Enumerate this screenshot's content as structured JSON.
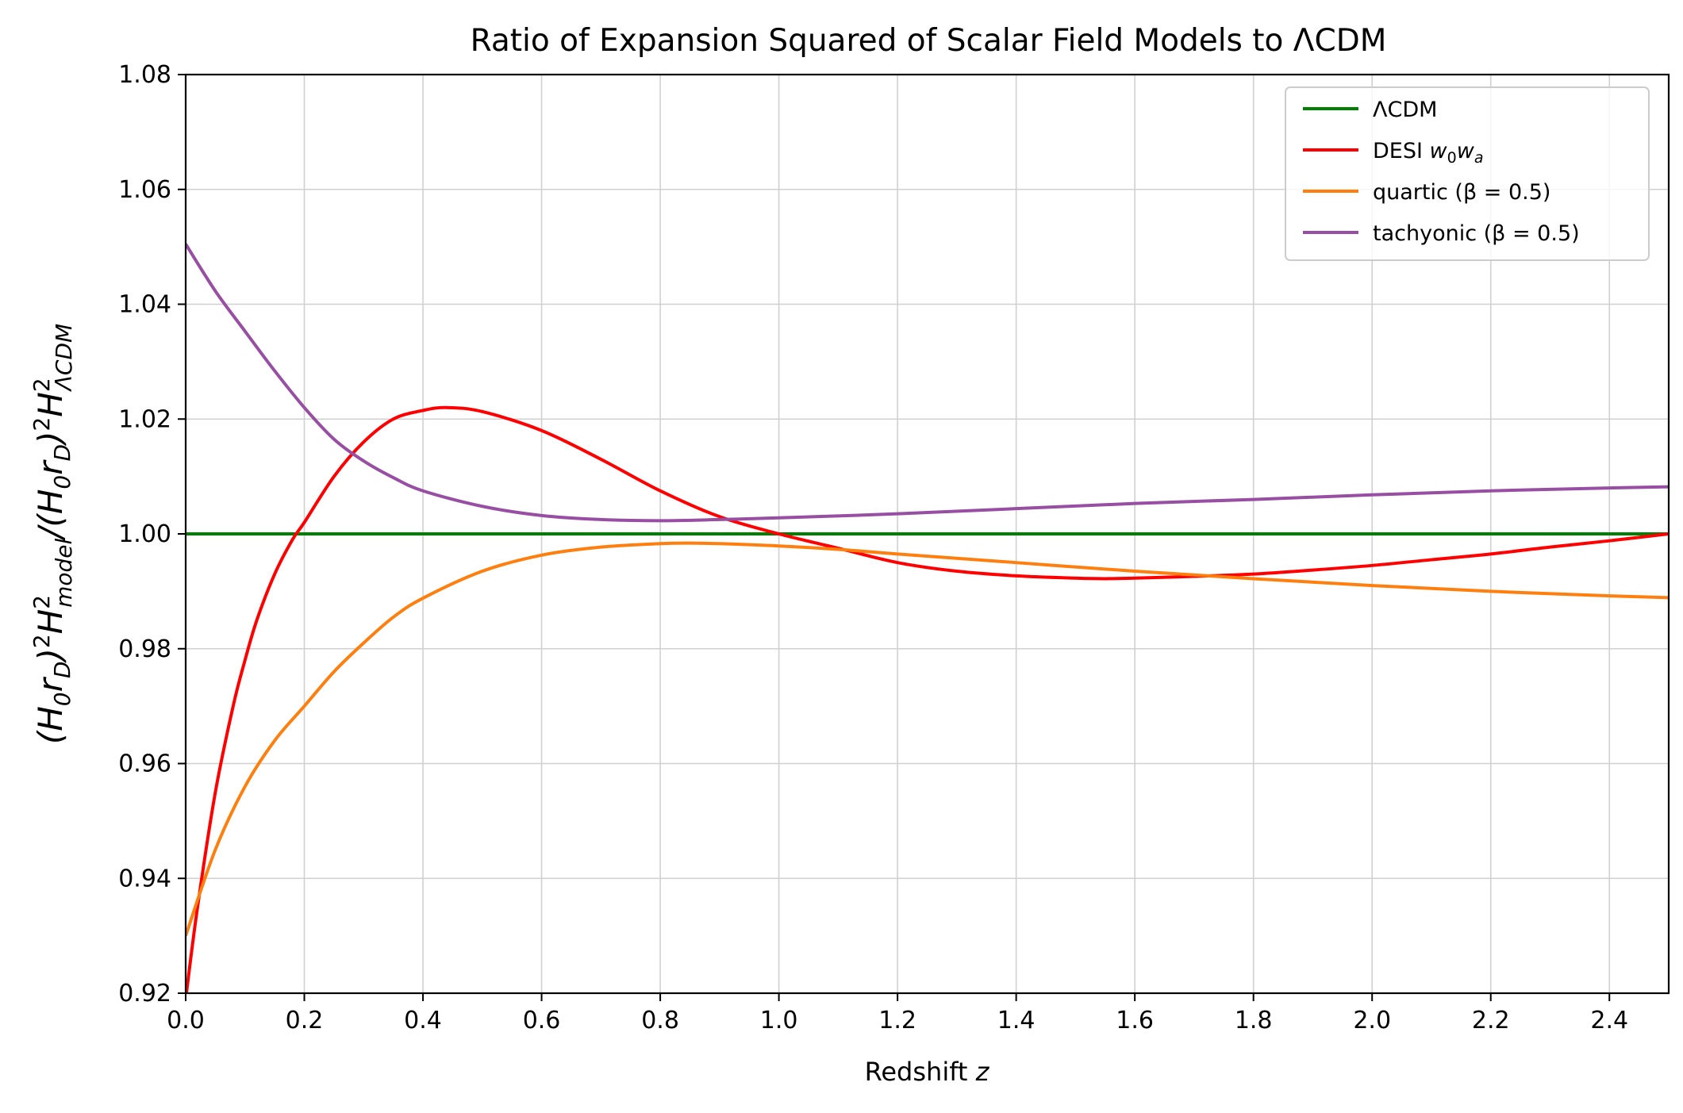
{
  "chart_data": {
    "type": "line",
    "title": "Ratio of Expansion Squared of Scalar Field Models to ΛCDM",
    "xlabel": "Redshift z",
    "ylabel": "(H0rD)²H²model/(H0rD)²H²ΛCDM",
    "xlim": [
      0.0,
      2.5
    ],
    "ylim": [
      0.92,
      1.08
    ],
    "xticks": [
      0.0,
      0.2,
      0.4,
      0.6,
      0.8,
      1.0,
      1.2,
      1.4,
      1.6,
      1.8,
      2.0,
      2.2,
      2.4
    ],
    "xtick_labels": [
      "0.0",
      "0.2",
      "0.4",
      "0.6",
      "0.8",
      "1.0",
      "1.2",
      "1.4",
      "1.6",
      "1.8",
      "2.0",
      "2.2",
      "2.4"
    ],
    "yticks": [
      0.92,
      0.94,
      0.96,
      0.98,
      1.0,
      1.02,
      1.04,
      1.06,
      1.08
    ],
    "ytick_labels": [
      "0.92",
      "0.94",
      "0.96",
      "0.98",
      "1.00",
      "1.02",
      "1.04",
      "1.06",
      "1.08"
    ],
    "grid": true,
    "legend_position": "top-right",
    "series": [
      {
        "name": "ΛCDM",
        "color": "#008000",
        "x": [
          0.0,
          2.5
        ],
        "y": [
          1.0,
          1.0
        ]
      },
      {
        "name": "DESI w0wa",
        "color": "#ff0000",
        "x": [
          0.0,
          0.02,
          0.05,
          0.08,
          0.1,
          0.12,
          0.15,
          0.18,
          0.2,
          0.25,
          0.3,
          0.35,
          0.4,
          0.44,
          0.5,
          0.6,
          0.7,
          0.8,
          0.9,
          1.0,
          1.1,
          1.2,
          1.3,
          1.4,
          1.5,
          1.55,
          1.6,
          1.7,
          1.8,
          1.9,
          2.0,
          2.1,
          2.2,
          2.3,
          2.4,
          2.5
        ],
        "y": [
          0.919,
          0.935,
          0.955,
          0.97,
          0.978,
          0.985,
          0.993,
          0.999,
          1.002,
          1.01,
          1.016,
          1.02,
          1.0215,
          1.022,
          1.0213,
          1.018,
          1.013,
          1.0075,
          1.003,
          1.0,
          0.9975,
          0.995,
          0.9935,
          0.9927,
          0.9923,
          0.9922,
          0.9923,
          0.9926,
          0.993,
          0.9937,
          0.9945,
          0.9955,
          0.9965,
          0.9977,
          0.9988,
          1.0
        ]
      },
      {
        "name": "quartic (β = 0.5)",
        "color": "#ff7f0e",
        "x": [
          0.0,
          0.05,
          0.1,
          0.15,
          0.2,
          0.25,
          0.3,
          0.35,
          0.4,
          0.5,
          0.6,
          0.7,
          0.8,
          0.85,
          0.9,
          1.0,
          1.1,
          1.2,
          1.4,
          1.6,
          1.8,
          2.0,
          2.2,
          2.4,
          2.5
        ],
        "y": [
          0.93,
          0.945,
          0.956,
          0.964,
          0.97,
          0.976,
          0.981,
          0.9855,
          0.9888,
          0.9935,
          0.9963,
          0.9977,
          0.9983,
          0.9984,
          0.9983,
          0.9979,
          0.9973,
          0.9965,
          0.995,
          0.9935,
          0.9922,
          0.991,
          0.99,
          0.9892,
          0.9889
        ]
      },
      {
        "name": "tachyonic (β = 0.5)",
        "color": "#984ea3",
        "x": [
          0.0,
          0.05,
          0.1,
          0.15,
          0.2,
          0.25,
          0.3,
          0.35,
          0.4,
          0.5,
          0.6,
          0.7,
          0.8,
          0.9,
          1.0,
          1.2,
          1.4,
          1.6,
          1.8,
          2.0,
          2.2,
          2.4,
          2.5
        ],
        "y": [
          1.0505,
          1.0423,
          1.0353,
          1.0284,
          1.022,
          1.0165,
          1.0127,
          1.0098,
          1.0075,
          1.0048,
          1.0032,
          1.0025,
          1.0023,
          1.0025,
          1.0028,
          1.0035,
          1.0044,
          1.0053,
          1.006,
          1.0068,
          1.0075,
          1.008,
          1.0082
        ]
      }
    ]
  }
}
